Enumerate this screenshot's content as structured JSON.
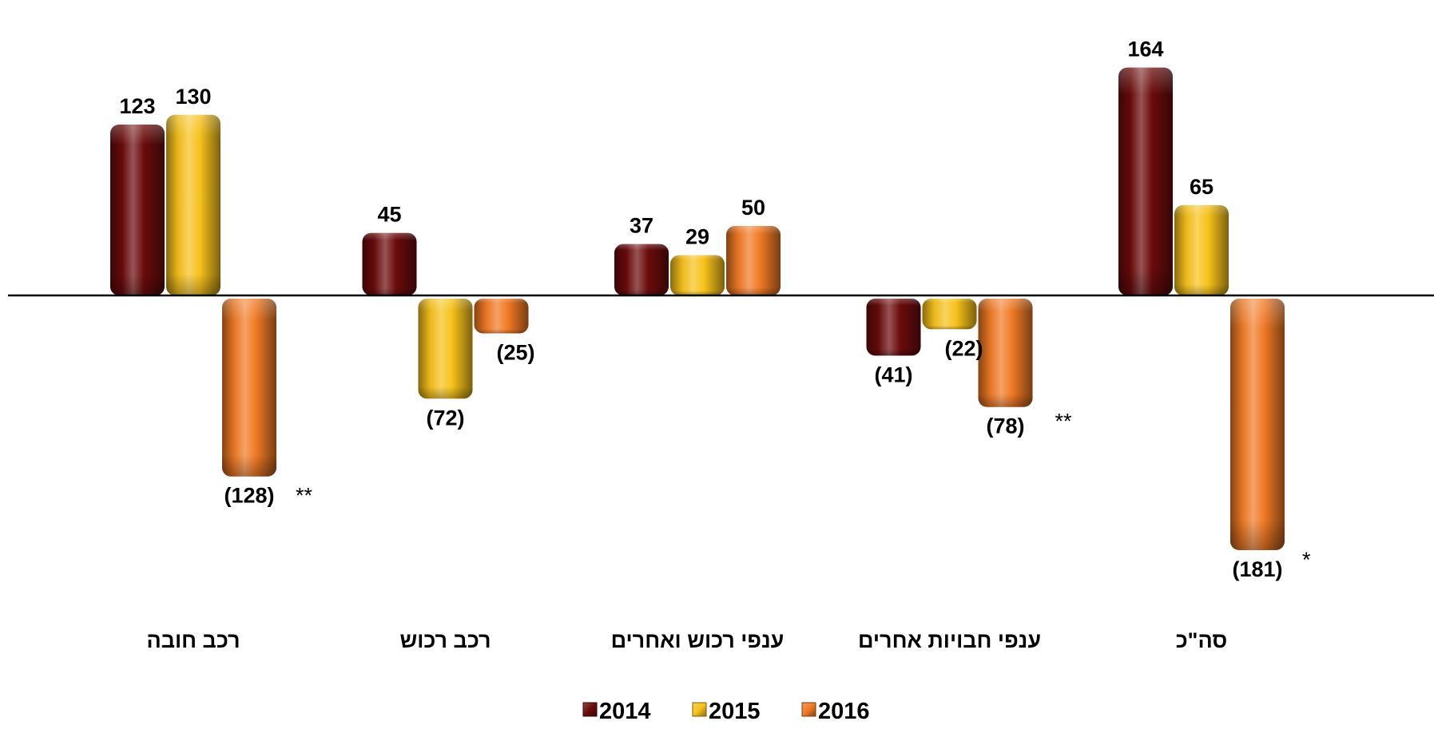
{
  "chart_data": {
    "type": "bar",
    "categories": [
      "רכב חובה",
      "רכב רכוש",
      "ענפי רכוש ואחרים",
      "ענפי חבויות אחרים",
      "סה\"כ"
    ],
    "series": [
      {
        "name": "2014",
        "color": "#6b0b0b",
        "values": [
          123,
          45,
          37,
          -41,
          164
        ],
        "labels": [
          "123",
          "45",
          "37",
          "(41)",
          "164"
        ]
      },
      {
        "name": "2015",
        "color": "#f7c21b",
        "values": [
          130,
          -72,
          29,
          -22,
          65
        ],
        "labels": [
          "130",
          "(72)",
          "29",
          "(22)",
          "65"
        ]
      },
      {
        "name": "2016",
        "color": "#f07a25",
        "values": [
          -128,
          -25,
          50,
          -78,
          -181
        ],
        "labels": [
          "(128)",
          "(25)",
          "50",
          "(78)",
          "(181)"
        ]
      }
    ],
    "notes": [
      {
        "category_index": 0,
        "series_index": 2,
        "text": "**"
      },
      {
        "category_index": 3,
        "series_index": 2,
        "text": "**"
      },
      {
        "category_index": 4,
        "series_index": 2,
        "text": "*"
      }
    ],
    "legend": {
      "position": "bottom",
      "entries": [
        "2014",
        "2015",
        "2016"
      ]
    },
    "ylim": [
      -181,
      164
    ],
    "grid": false,
    "title": "",
    "xlabel": "",
    "ylabel": ""
  }
}
